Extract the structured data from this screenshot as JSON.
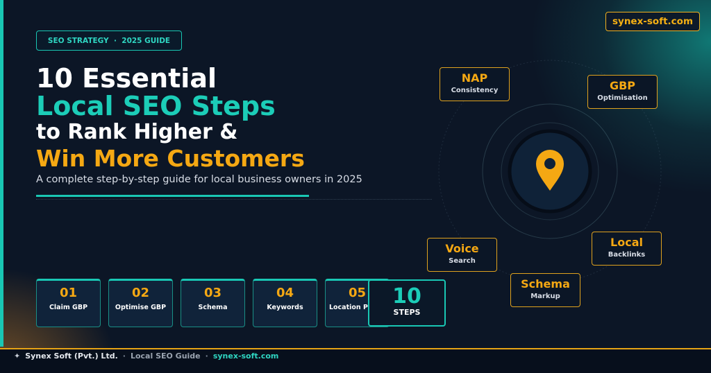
{
  "badge": "SEO STRATEGY  ·  2025 GUIDE",
  "domain": "synex-soft.com",
  "title": {
    "line1": "10 Essential",
    "line2": "Local SEO Steps",
    "line3": "to Rank Higher &",
    "line4": "Win More Customers"
  },
  "subtitle": "A complete step-by-step guide for local business owners in 2025",
  "steps": [
    {
      "number": "01",
      "label": "Claim GBP"
    },
    {
      "number": "02",
      "label": "Optimise GBP"
    },
    {
      "number": "03",
      "label": "Schema"
    },
    {
      "number": "04",
      "label": "Keywords"
    },
    {
      "number": "05",
      "label": "Location Pages"
    }
  ],
  "total": {
    "number": "10",
    "label": "STEPS"
  },
  "orbit": [
    {
      "title": "NAP",
      "sub": "Consistency"
    },
    {
      "title": "GBP",
      "sub": "Optimisation"
    },
    {
      "title": "Voice",
      "sub": "Search"
    },
    {
      "title": "Local",
      "sub": "Backlinks"
    },
    {
      "title": "Schema",
      "sub": "Markup"
    }
  ],
  "footer": {
    "icon": "✦",
    "company": "Synex Soft (Pvt.) Ltd.",
    "separator": "·",
    "guide": "Local SEO Guide",
    "site": "synex-soft.com"
  }
}
